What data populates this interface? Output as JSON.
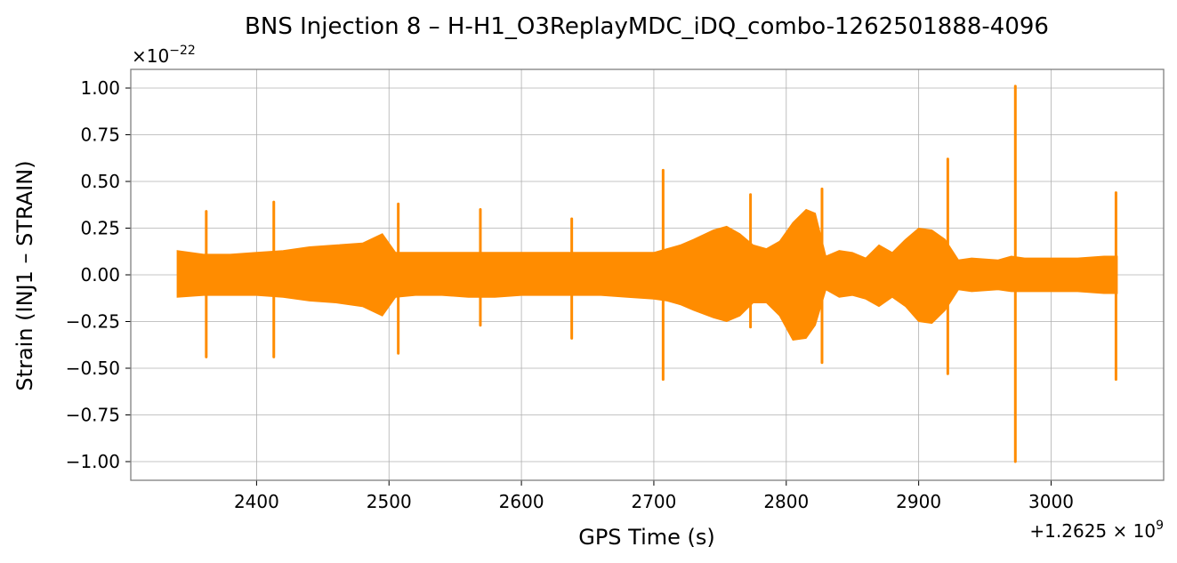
{
  "chart_data": {
    "type": "line",
    "title": "BNS Injection 8 – H-H1_O3ReplayMDC_iDQ_combo-1262501888-4096",
    "xlabel": "GPS Time (s)",
    "ylabel": "Strain (INJ1 – STRAIN)",
    "x_offset_label": "+1.2625 × 10",
    "x_offset_exp": "9",
    "y_multiplier_label": "×10",
    "y_multiplier_exp": "−22",
    "xlim": [
      2305,
      3085
    ],
    "ylim": [
      -1.1,
      1.1
    ],
    "x_ticks": [
      2400,
      2500,
      2600,
      2700,
      2800,
      2900,
      3000
    ],
    "y_ticks": [
      1.0,
      0.75,
      0.5,
      0.25,
      0.0,
      -0.25,
      -0.5,
      -0.75,
      -1.0
    ],
    "x_tick_labels": [
      "2400",
      "2500",
      "2600",
      "2700",
      "2800",
      "2900",
      "3000"
    ],
    "y_tick_labels": [
      "1.00",
      "0.75",
      "0.50",
      "0.25",
      "0.00",
      "−0.25",
      "−0.50",
      "−0.75",
      "−1.00"
    ],
    "grid": true,
    "line_color": "#ff8c00",
    "series": [
      {
        "envelope_x": [
          2340,
          2360,
          2380,
          2400,
          2420,
          2440,
          2460,
          2480,
          2495,
          2505,
          2520,
          2540,
          2560,
          2580,
          2600,
          2620,
          2640,
          2660,
          2680,
          2700,
          2710,
          2720,
          2730,
          2745,
          2755,
          2765,
          2775,
          2785,
          2795,
          2805,
          2815,
          2822,
          2830,
          2840,
          2850,
          2860,
          2870,
          2880,
          2890,
          2900,
          2910,
          2920,
          2930,
          2940,
          2960,
          2970,
          2980,
          3000,
          3020,
          3040,
          3050
        ],
        "envelope_hi": [
          0.13,
          0.11,
          0.11,
          0.12,
          0.13,
          0.15,
          0.16,
          0.17,
          0.22,
          0.12,
          0.12,
          0.12,
          0.12,
          0.12,
          0.12,
          0.12,
          0.12,
          0.12,
          0.12,
          0.12,
          0.14,
          0.16,
          0.19,
          0.24,
          0.26,
          0.22,
          0.16,
          0.14,
          0.18,
          0.28,
          0.35,
          0.33,
          0.1,
          0.13,
          0.12,
          0.09,
          0.16,
          0.12,
          0.19,
          0.25,
          0.24,
          0.19,
          0.08,
          0.09,
          0.08,
          0.1,
          0.09,
          0.09,
          0.09,
          0.1,
          0.1
        ],
        "envelope_lo": [
          -0.12,
          -0.11,
          -0.11,
          -0.11,
          -0.12,
          -0.14,
          -0.15,
          -0.17,
          -0.22,
          -0.12,
          -0.11,
          -0.11,
          -0.12,
          -0.12,
          -0.11,
          -0.11,
          -0.11,
          -0.11,
          -0.12,
          -0.13,
          -0.14,
          -0.16,
          -0.19,
          -0.23,
          -0.25,
          -0.22,
          -0.15,
          -0.15,
          -0.22,
          -0.35,
          -0.34,
          -0.27,
          -0.08,
          -0.12,
          -0.11,
          -0.13,
          -0.17,
          -0.12,
          -0.17,
          -0.25,
          -0.26,
          -0.19,
          -0.08,
          -0.09,
          -0.08,
          -0.09,
          -0.09,
          -0.09,
          -0.09,
          -0.1,
          -0.1
        ],
        "spikes": [
          {
            "x": 2362,
            "hi": 0.34,
            "lo": -0.44
          },
          {
            "x": 2413,
            "hi": 0.39,
            "lo": -0.44
          },
          {
            "x": 2507,
            "hi": 0.38,
            "lo": -0.42
          },
          {
            "x": 2569,
            "hi": 0.35,
            "lo": -0.27
          },
          {
            "x": 2638,
            "hi": 0.3,
            "lo": -0.34
          },
          {
            "x": 2707,
            "hi": 0.56,
            "lo": -0.56
          },
          {
            "x": 2773,
            "hi": 0.43,
            "lo": -0.28
          },
          {
            "x": 2827,
            "hi": 0.46,
            "lo": -0.47
          },
          {
            "x": 2922,
            "hi": 0.62,
            "lo": -0.53
          },
          {
            "x": 2973,
            "hi": 1.01,
            "lo": -1.0
          },
          {
            "x": 3049,
            "hi": 0.44,
            "lo": -0.56
          }
        ]
      }
    ]
  }
}
